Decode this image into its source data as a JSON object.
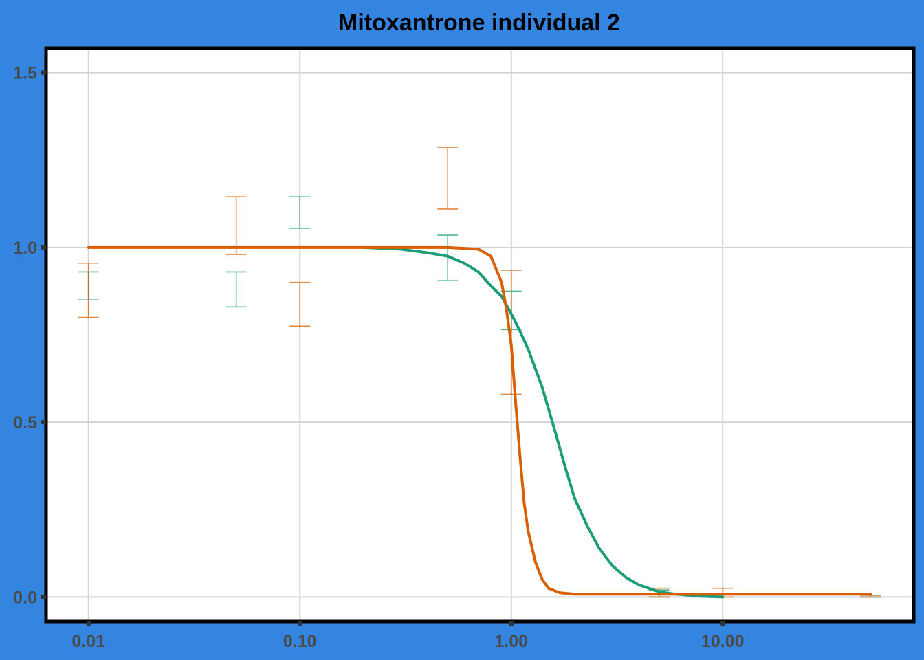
{
  "colors": {
    "background": "#3385e0",
    "panel": "#ffffff",
    "border": "#000000",
    "grid": "#d3d3d3",
    "tick_text": "#4a4a4a",
    "green": "#1b9e77",
    "orange": "#d95f02"
  },
  "chart_data": {
    "type": "line",
    "title": "Mitoxantrone individual 2",
    "xlabel": "",
    "ylabel": "",
    "x_scale": "log10",
    "xlim": [
      0.0063,
      80
    ],
    "ylim": [
      -0.07,
      1.57
    ],
    "grid": true,
    "legend": "none",
    "x_ticks": [
      0.01,
      0.1,
      1,
      10
    ],
    "x_tick_labels": [
      "0.01",
      "0.10",
      "1.00",
      "10.00"
    ],
    "y_ticks": [
      0,
      0.5,
      1,
      1.5
    ],
    "y_tick_labels": [
      "0.0",
      "0.5",
      "1.0",
      "1.5"
    ],
    "series": [
      {
        "color": "#1b9e77",
        "curve": [
          {
            "x": 0.2,
            "y": 1.0
          },
          {
            "x": 0.3,
            "y": 0.995
          },
          {
            "x": 0.4,
            "y": 0.985
          },
          {
            "x": 0.5,
            "y": 0.975
          },
          {
            "x": 0.6,
            "y": 0.955
          },
          {
            "x": 0.7,
            "y": 0.93
          },
          {
            "x": 0.8,
            "y": 0.89
          },
          {
            "x": 0.9,
            "y": 0.86
          },
          {
            "x": 1.0,
            "y": 0.81
          },
          {
            "x": 1.1,
            "y": 0.76
          },
          {
            "x": 1.2,
            "y": 0.71
          },
          {
            "x": 1.4,
            "y": 0.6
          },
          {
            "x": 1.6,
            "y": 0.48
          },
          {
            "x": 1.8,
            "y": 0.37
          },
          {
            "x": 2.0,
            "y": 0.28
          },
          {
            "x": 2.3,
            "y": 0.2
          },
          {
            "x": 2.6,
            "y": 0.14
          },
          {
            "x": 3.0,
            "y": 0.09
          },
          {
            "x": 3.5,
            "y": 0.055
          },
          {
            "x": 4.0,
            "y": 0.035
          },
          {
            "x": 5.0,
            "y": 0.015
          },
          {
            "x": 6.0,
            "y": 0.008
          },
          {
            "x": 8.0,
            "y": 0.002
          },
          {
            "x": 10.0,
            "y": 0.0
          }
        ],
        "error_bars": [
          {
            "x": 0.01,
            "low": 0.85,
            "high": 0.93
          },
          {
            "x": 0.05,
            "low": 0.83,
            "high": 0.93
          },
          {
            "x": 0.1,
            "low": 1.055,
            "high": 1.145
          },
          {
            "x": 0.5,
            "low": 0.905,
            "high": 1.035
          },
          {
            "x": 1.0,
            "low": 0.765,
            "high": 0.875
          },
          {
            "x": 5.0,
            "low": 0.0,
            "high": 0.02
          },
          {
            "x": 50.0,
            "low": 0.0,
            "high": 0.005
          }
        ]
      },
      {
        "color": "#d95f02",
        "curve": [
          {
            "x": 0.01,
            "y": 1.0
          },
          {
            "x": 0.1,
            "y": 1.0
          },
          {
            "x": 0.5,
            "y": 1.0
          },
          {
            "x": 0.7,
            "y": 0.995
          },
          {
            "x": 0.8,
            "y": 0.975
          },
          {
            "x": 0.9,
            "y": 0.9
          },
          {
            "x": 0.95,
            "y": 0.82
          },
          {
            "x": 1.0,
            "y": 0.72
          },
          {
            "x": 1.05,
            "y": 0.55
          },
          {
            "x": 1.1,
            "y": 0.4
          },
          {
            "x": 1.15,
            "y": 0.27
          },
          {
            "x": 1.2,
            "y": 0.19
          },
          {
            "x": 1.3,
            "y": 0.1
          },
          {
            "x": 1.4,
            "y": 0.05
          },
          {
            "x": 1.5,
            "y": 0.025
          },
          {
            "x": 1.7,
            "y": 0.012
          },
          {
            "x": 2.0,
            "y": 0.008
          },
          {
            "x": 5.0,
            "y": 0.008
          },
          {
            "x": 10.0,
            "y": 0.008
          },
          {
            "x": 50.0,
            "y": 0.008
          }
        ],
        "error_bars": [
          {
            "x": 0.01,
            "low": 0.8,
            "high": 0.955
          },
          {
            "x": 0.05,
            "low": 0.98,
            "high": 1.145
          },
          {
            "x": 0.1,
            "low": 0.775,
            "high": 0.9
          },
          {
            "x": 0.5,
            "low": 1.11,
            "high": 1.285
          },
          {
            "x": 1.0,
            "low": 0.58,
            "high": 0.935
          },
          {
            "x": 5.0,
            "low": 0.0,
            "high": 0.025
          },
          {
            "x": 10.0,
            "low": 0.0,
            "high": 0.025
          },
          {
            "x": 50.0,
            "low": 0.0,
            "high": 0.005
          }
        ]
      }
    ]
  }
}
